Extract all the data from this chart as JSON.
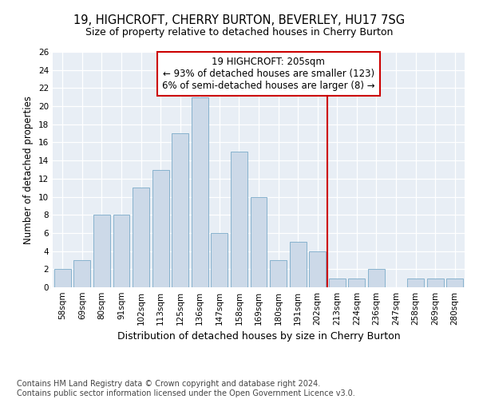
{
  "title": "19, HIGHCROFT, CHERRY BURTON, BEVERLEY, HU17 7SG",
  "subtitle": "Size of property relative to detached houses in Cherry Burton",
  "xlabel": "Distribution of detached houses by size in Cherry Burton",
  "ylabel": "Number of detached properties",
  "categories": [
    "58sqm",
    "69sqm",
    "80sqm",
    "91sqm",
    "102sqm",
    "113sqm",
    "125sqm",
    "136sqm",
    "147sqm",
    "158sqm",
    "169sqm",
    "180sqm",
    "191sqm",
    "202sqm",
    "213sqm",
    "224sqm",
    "236sqm",
    "247sqm",
    "258sqm",
    "269sqm",
    "280sqm"
  ],
  "values": [
    2,
    3,
    8,
    8,
    11,
    13,
    17,
    21,
    6,
    15,
    10,
    3,
    5,
    4,
    1,
    1,
    2,
    0,
    1,
    1,
    1
  ],
  "bar_color": "#ccd9e8",
  "bar_edge_color": "#7aaac8",
  "vline_x": 13.5,
  "vline_color": "#cc0000",
  "annotation_title": "19 HIGHCROFT: 205sqm",
  "annotation_line1": "← 93% of detached houses are smaller (123)",
  "annotation_line2": "6% of semi-detached houses are larger (8) →",
  "annotation_box_color": "#ffffff",
  "annotation_box_edge": "#cc0000",
  "ylim": [
    0,
    26
  ],
  "yticks": [
    0,
    2,
    4,
    6,
    8,
    10,
    12,
    14,
    16,
    18,
    20,
    22,
    24,
    26
  ],
  "background_color": "#e8eef5",
  "footer_line1": "Contains HM Land Registry data © Crown copyright and database right 2024.",
  "footer_line2": "Contains public sector information licensed under the Open Government Licence v3.0.",
  "title_fontsize": 10.5,
  "subtitle_fontsize": 9,
  "xlabel_fontsize": 9,
  "ylabel_fontsize": 8.5,
  "tick_fontsize": 7.5,
  "footer_fontsize": 7,
  "ann_fontsize": 8.5
}
